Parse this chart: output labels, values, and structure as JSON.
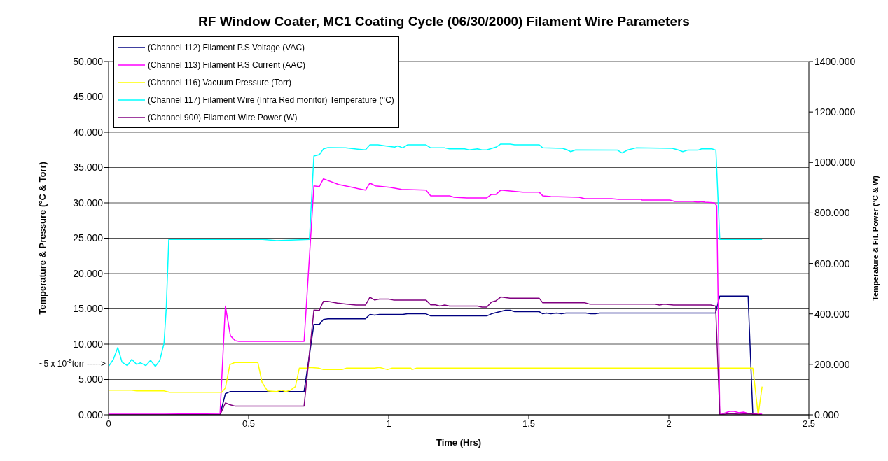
{
  "chart_data": {
    "type": "line",
    "title": "RF Window Coater, MC1 Coating Cycle (06/30/2000) Filament Wire Parameters",
    "xlabel": "Time (Hrs)",
    "ylabel": "Temperature & Pressure (°C & Torr)",
    "y2label": "Temperature & Fil. Power (°C & W)",
    "xlim": [
      0,
      2.5
    ],
    "xticks": [
      0,
      0.5,
      1,
      1.5,
      2,
      2.5
    ],
    "ylim": [
      0,
      50
    ],
    "yticks": [
      {
        "value": 0,
        "label": "0.000"
      },
      {
        "value": 5,
        "label": "5.000"
      },
      {
        "value": 10,
        "label": "10.000"
      },
      {
        "value": 15,
        "label": "15.000"
      },
      {
        "value": 20,
        "label": "20.000"
      },
      {
        "value": 25,
        "label": "25.000"
      },
      {
        "value": 30,
        "label": "30.000"
      },
      {
        "value": 35,
        "label": "35.000"
      },
      {
        "value": 40,
        "label": "40.000"
      },
      {
        "value": 45,
        "label": "45.000"
      },
      {
        "value": 50,
        "label": "50.000"
      }
    ],
    "y2lim": [
      0,
      1400
    ],
    "y2ticks": [
      {
        "value": 0,
        "label": "0.000"
      },
      {
        "value": 200,
        "label": "200.000"
      },
      {
        "value": 400,
        "label": "400.000"
      },
      {
        "value": 600,
        "label": "600.000"
      },
      {
        "value": 800,
        "label": "800.000"
      },
      {
        "value": 1000,
        "label": "1000.000"
      },
      {
        "value": 1200,
        "label": "1200.000"
      },
      {
        "value": 1400,
        "label": "1400.000"
      }
    ],
    "grid": "y",
    "legend": "top left",
    "annotations": [
      {
        "text": "~5 x 10$^{-5}$torr ----->",
        "x": 0,
        "y": 7.2
      }
    ],
    "series": [
      {
        "name": "(Channel 112) Filament P.S Voltage (VAC)",
        "color": "#000080",
        "x": [
          0,
          0.2,
          0.398,
          0.417,
          0.435,
          0.698,
          0.733,
          0.7525,
          0.767,
          0.783,
          0.917,
          0.933,
          0.95,
          0.967,
          1.05,
          1.067,
          1.133,
          1.15,
          1.35,
          1.367,
          1.417,
          1.433,
          1.45,
          1.5375,
          1.55,
          1.5625,
          1.579,
          1.6,
          1.617,
          1.633,
          1.704,
          1.721,
          1.7375,
          1.754,
          2.167,
          2.171,
          2.182,
          2.283,
          2.3
        ],
        "values": [
          0,
          0,
          0,
          3.0,
          3.3,
          3.3,
          12.8,
          12.8,
          13.5,
          13.6,
          13.6,
          14.2,
          14.1,
          14.2,
          14.2,
          14.3,
          14.3,
          14.0,
          14.0,
          14.3,
          14.8,
          14.8,
          14.6,
          14.6,
          14.3,
          14.4,
          14.3,
          14.4,
          14.3,
          14.4,
          14.4,
          14.3,
          14.3,
          14.4,
          14.4,
          15.1,
          16.8,
          16.8,
          0
        ]
      },
      {
        "name": "(Channel 113) Filament P.S Current (AAC)",
        "color": "#ff00ff",
        "x": [
          0,
          0.2,
          0.398,
          0.417,
          0.435,
          0.452,
          0.465,
          0.698,
          0.733,
          0.7525,
          0.767,
          0.821,
          0.917,
          0.933,
          0.9525,
          1.004,
          1.046,
          1.133,
          1.15,
          1.217,
          1.233,
          1.279,
          1.35,
          1.367,
          1.383,
          1.4,
          1.479,
          1.5375,
          1.55,
          1.579,
          1.679,
          1.7,
          1.796,
          1.821,
          1.9,
          1.904,
          2.004,
          2.021,
          2.0875,
          2.104,
          2.117,
          2.129,
          2.1625,
          2.171,
          2.182,
          2.217,
          2.233,
          2.25,
          2.267,
          2.283,
          2.333
        ],
        "values": [
          0.1,
          0.1,
          0.2,
          15.4,
          11.2,
          10.5,
          10.4,
          10.4,
          32.4,
          32.3,
          33.4,
          32.6,
          31.8,
          32.8,
          32.4,
          32.2,
          31.9,
          31.8,
          31.0,
          31.0,
          30.8,
          30.7,
          30.7,
          31.2,
          31.2,
          31.8,
          31.5,
          31.5,
          31.0,
          30.9,
          30.8,
          30.6,
          30.6,
          30.5,
          30.5,
          30.4,
          30.4,
          30.2,
          30.2,
          30.1,
          30.2,
          30.1,
          30.0,
          29.6,
          0,
          0.5,
          0.5,
          0.3,
          0.4,
          0.2,
          0.1
        ]
      },
      {
        "name": "(Channel 116) Vacuum Pressure (Torr)",
        "color": "#ffff00",
        "x": [
          0,
          0.083,
          0.1,
          0.198,
          0.217,
          0.404,
          0.417,
          0.433,
          0.45,
          0.533,
          0.548,
          0.567,
          0.6,
          0.617,
          0.633,
          0.65,
          0.667,
          0.681,
          0.708,
          0.719,
          0.75,
          0.767,
          0.833,
          0.85,
          0.95,
          0.967,
          0.996,
          1.0125,
          1.079,
          1.083,
          1.1,
          2.3,
          2.319,
          2.333
        ],
        "values": [
          3.5,
          3.5,
          3.4,
          3.4,
          3.2,
          3.2,
          3.8,
          7.1,
          7.4,
          7.4,
          4.6,
          3.4,
          3.3,
          3.5,
          3.3,
          3.5,
          4.0,
          6.6,
          6.6,
          6.7,
          6.6,
          6.4,
          6.4,
          6.6,
          6.6,
          6.7,
          6.4,
          6.6,
          6.6,
          6.4,
          6.6,
          6.6,
          0,
          4.0
        ]
      },
      {
        "name": "(Channel 117) Filament Wire (Infra Red monitor) Temperature (°C)",
        "color": "#00ffff",
        "axis": "y2",
        "x": [
          0,
          0.017,
          0.033,
          0.048,
          0.067,
          0.083,
          0.1,
          0.114,
          0.133,
          0.15,
          0.167,
          0.183,
          0.198,
          0.206,
          0.215,
          0.55,
          0.6,
          0.717,
          0.733,
          0.7525,
          0.767,
          0.783,
          0.846,
          0.879,
          0.917,
          0.933,
          0.962,
          0.9875,
          1.021,
          1.033,
          1.05,
          1.067,
          1.133,
          1.15,
          1.2,
          1.217,
          1.271,
          1.2875,
          1.317,
          1.333,
          1.35,
          1.383,
          1.4,
          1.433,
          1.45,
          1.5375,
          1.55,
          1.621,
          1.6375,
          1.65,
          1.667,
          1.817,
          1.833,
          1.854,
          1.883,
          2.0125,
          2.033,
          2.05,
          2.067,
          2.104,
          2.117,
          2.154,
          2.168,
          2.182,
          2.333
        ],
        "values": [
          192,
          219,
          267,
          209,
          195,
          220,
          200,
          206,
          195,
          216,
          192,
          216,
          283,
          422,
          695,
          695,
          690,
          695,
          1026,
          1031,
          1054,
          1059,
          1058,
          1054,
          1050,
          1070,
          1070,
          1066,
          1061,
          1066,
          1058,
          1070,
          1070,
          1058,
          1058,
          1054,
          1054,
          1050,
          1054,
          1050,
          1050,
          1061,
          1073,
          1073,
          1070,
          1070,
          1058,
          1056,
          1050,
          1043,
          1050,
          1049,
          1038,
          1050,
          1058,
          1056,
          1050,
          1043,
          1049,
          1049,
          1054,
          1054,
          1049,
          695,
          695
        ]
      },
      {
        "name": "(Channel 900) Filament Wire Power (W)",
        "color": "#800080",
        "axis": "y2",
        "x": [
          0,
          0.2,
          0.398,
          0.417,
          0.433,
          0.45,
          0.698,
          0.733,
          0.7525,
          0.767,
          0.783,
          0.817,
          0.85,
          0.883,
          0.917,
          0.933,
          0.95,
          0.967,
          1.0,
          1.017,
          1.133,
          1.15,
          1.167,
          1.183,
          1.2,
          1.217,
          1.317,
          1.333,
          1.35,
          1.367,
          1.383,
          1.4,
          1.433,
          1.5375,
          1.55,
          1.7,
          1.717,
          1.95,
          1.967,
          1.983,
          2.017,
          2.15,
          2.167,
          2.182,
          2.217,
          2.25,
          2.283,
          2.333
        ],
        "values": [
          0,
          0,
          0,
          47,
          40,
          35,
          35,
          415,
          414,
          450,
          450,
          443,
          439,
          435,
          435,
          466,
          455,
          459,
          459,
          455,
          455,
          436,
          436,
          431,
          435,
          431,
          431,
          427,
          427,
          447,
          452,
          467,
          462,
          462,
          444,
          444,
          439,
          439,
          435,
          439,
          435,
          435,
          431,
          0,
          5,
          3,
          4,
          0
        ]
      }
    ]
  }
}
